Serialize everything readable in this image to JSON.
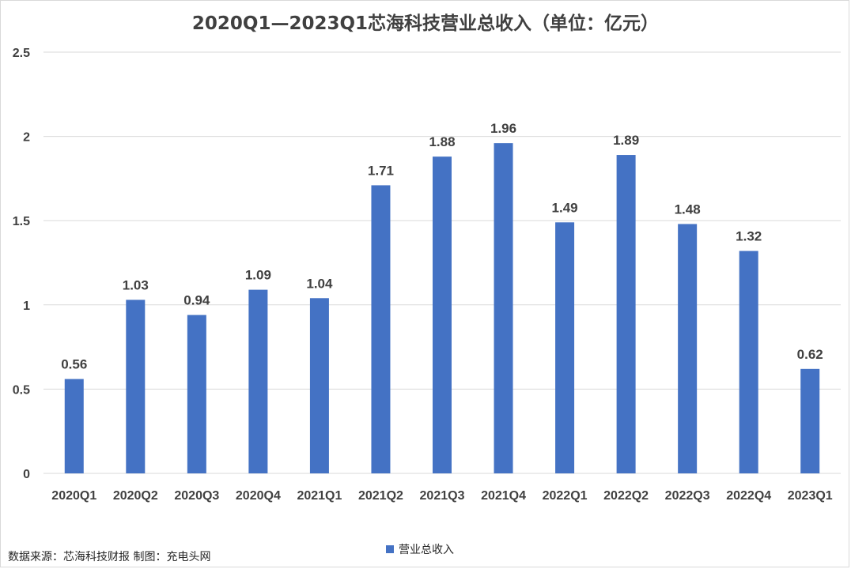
{
  "chart_data": {
    "type": "bar",
    "title": "2020Q1—2023Q1芯海科技营业总收入（单位：亿元）",
    "categories": [
      "2020Q1",
      "2020Q2",
      "2020Q3",
      "2020Q4",
      "2021Q1",
      "2021Q2",
      "2021Q3",
      "2021Q4",
      "2022Q1",
      "2022Q2",
      "2022Q3",
      "2022Q4",
      "2023Q1"
    ],
    "series": [
      {
        "name": "营业总收入",
        "values": [
          0.56,
          1.03,
          0.94,
          1.09,
          1.04,
          1.71,
          1.88,
          1.96,
          1.49,
          1.89,
          1.48,
          1.32,
          0.62
        ]
      }
    ],
    "data_labels": [
      "0.56",
      "1.03",
      "0.94",
      "1.09",
      "1.04",
      "1.71",
      "1.88",
      "1.96",
      "1.49",
      "1.89",
      "1.48",
      "1.32",
      "0.62"
    ],
    "y_ticks": [
      "0",
      "0.5",
      "1",
      "1.5",
      "2",
      "2.5"
    ],
    "ylim": [
      0,
      2.5
    ],
    "grid": true,
    "legend": "bottom",
    "colors": {
      "bar": "#4472c4",
      "grid": "#d9d9d9",
      "text": "#404040"
    }
  },
  "footer": {
    "source": "数据来源：芯海科技财报  制图：充电头网"
  }
}
